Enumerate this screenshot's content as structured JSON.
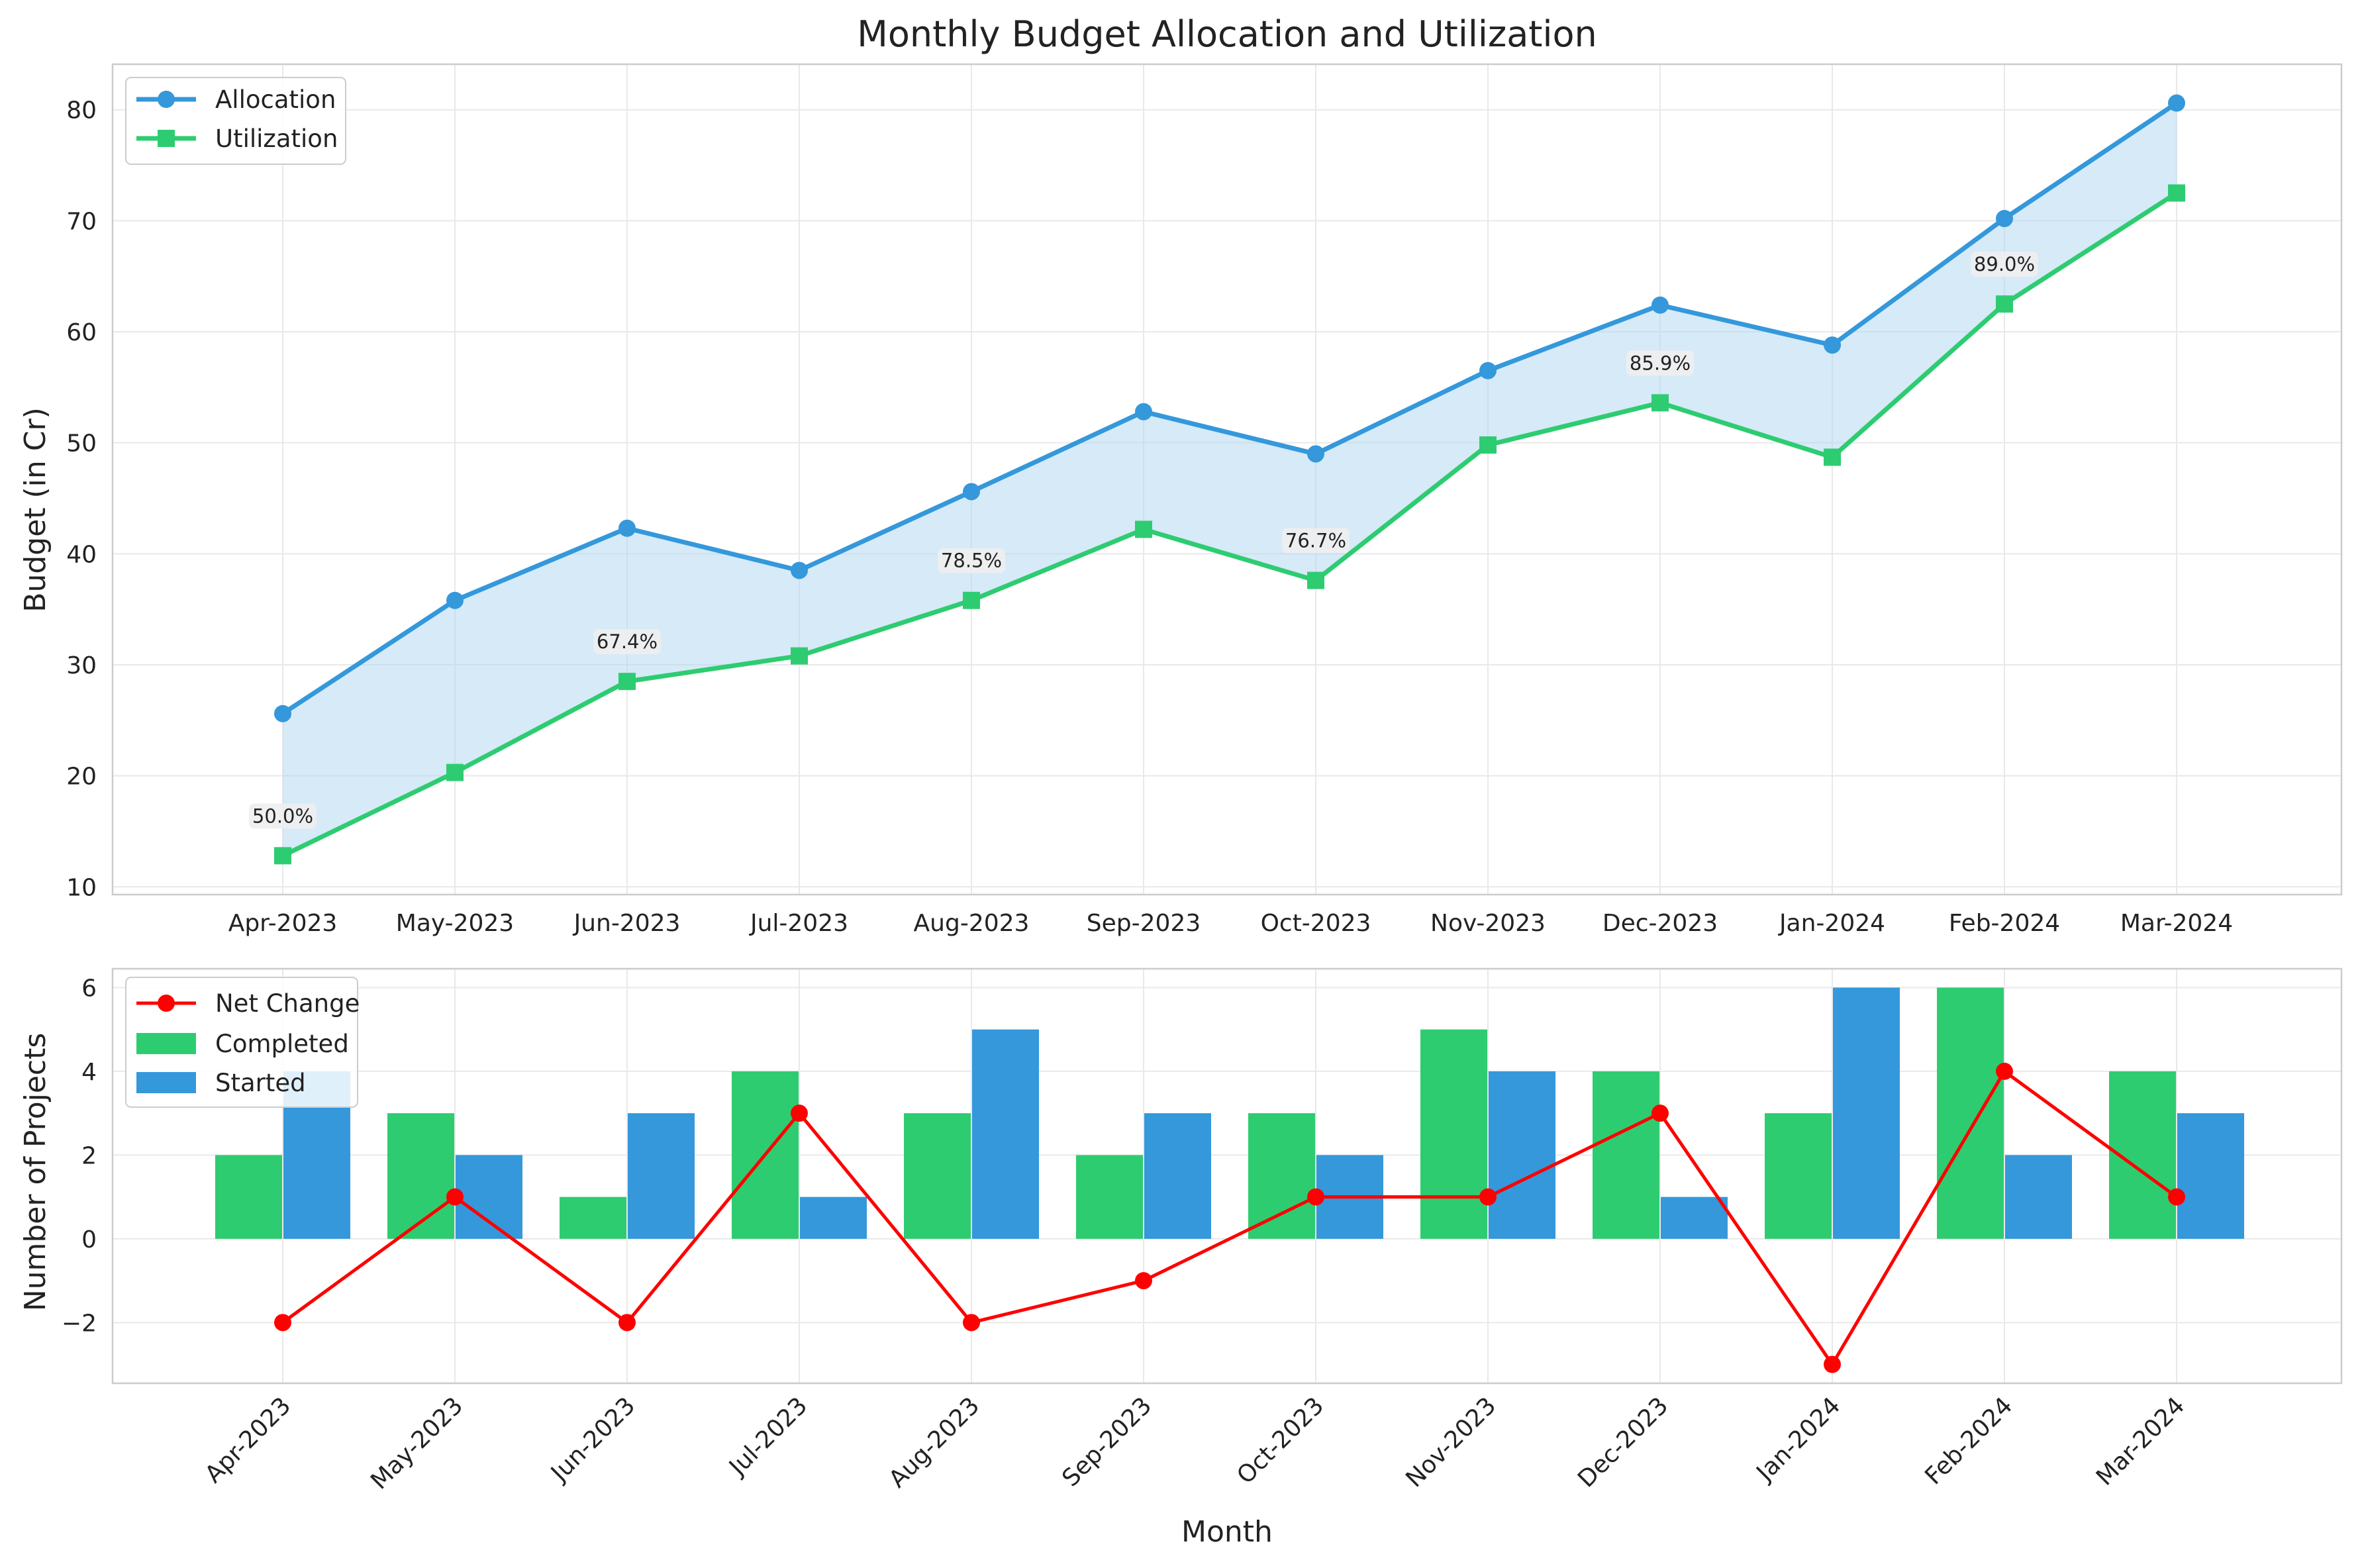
{
  "chart_data": [
    {
      "type": "line",
      "title": "Monthly Budget Allocation and Utilization",
      "xlabel": "",
      "ylabel": "Budget (in Cr)",
      "categories": [
        "Apr-2023",
        "May-2023",
        "Jun-2023",
        "Jul-2023",
        "Aug-2023",
        "Sep-2023",
        "Oct-2023",
        "Nov-2023",
        "Dec-2023",
        "Jan-2024",
        "Feb-2024",
        "Mar-2024"
      ],
      "ylim": [
        9.3,
        84.1
      ],
      "yticks": [
        10,
        20,
        30,
        40,
        50,
        60,
        70,
        80
      ],
      "grid": true,
      "legend_position": "top-left",
      "fill_between": {
        "color": "#AED6F1",
        "between": [
          "Allocation",
          "Utilization"
        ]
      },
      "series": [
        {
          "name": "Allocation",
          "marker": "circle",
          "color": "#3498DB",
          "values": [
            25.6,
            35.8,
            42.3,
            38.5,
            45.6,
            52.8,
            49.0,
            56.5,
            62.4,
            58.8,
            70.2,
            80.6
          ]
        },
        {
          "name": "Utilization",
          "marker": "square",
          "color": "#2ECC71",
          "values": [
            12.8,
            20.3,
            28.5,
            30.8,
            35.8,
            42.2,
            37.6,
            49.8,
            53.6,
            48.7,
            62.5,
            72.5
          ]
        }
      ],
      "annotations": [
        {
          "category_index": 0,
          "anchor_value": 12.8,
          "text": "50.0%"
        },
        {
          "category_index": 2,
          "anchor_value": 28.5,
          "text": "67.4%"
        },
        {
          "category_index": 4,
          "anchor_value": 35.8,
          "text": "78.5%"
        },
        {
          "category_index": 6,
          "anchor_value": 37.6,
          "text": "76.7%"
        },
        {
          "category_index": 8,
          "anchor_value": 53.6,
          "text": "85.9%"
        },
        {
          "category_index": 10,
          "anchor_value": 62.5,
          "text": "89.0%"
        }
      ]
    },
    {
      "type": "bar",
      "title": "",
      "xlabel": "Month",
      "ylabel": "Number of Projects",
      "categories": [
        "Apr-2023",
        "May-2023",
        "Jun-2023",
        "Jul-2023",
        "Aug-2023",
        "Sep-2023",
        "Oct-2023",
        "Nov-2023",
        "Dec-2023",
        "Jan-2024",
        "Feb-2024",
        "Mar-2024"
      ],
      "ylim": [
        -3.45,
        6.45
      ],
      "yticks": [
        -2,
        0,
        2,
        4,
        6
      ],
      "ytick_labels": [
        "−2",
        "0",
        "2",
        "4",
        "6"
      ],
      "grid": true,
      "legend_position": "top-left",
      "series": [
        {
          "name": "Completed",
          "kind": "bar",
          "color": "#2ECC71",
          "values": [
            2,
            3,
            1,
            4,
            3,
            2,
            3,
            5,
            4,
            3,
            6,
            4
          ]
        },
        {
          "name": "Started",
          "kind": "bar",
          "color": "#3498DB",
          "values": [
            4,
            2,
            3,
            1,
            5,
            3,
            2,
            4,
            1,
            6,
            2,
            3
          ]
        },
        {
          "name": "Net Change",
          "kind": "line",
          "marker": "circle",
          "color": "#FF0000",
          "values": [
            -2,
            1,
            -2,
            3,
            -2,
            -1,
            1,
            1,
            3,
            -3,
            4,
            1
          ]
        }
      ]
    }
  ]
}
